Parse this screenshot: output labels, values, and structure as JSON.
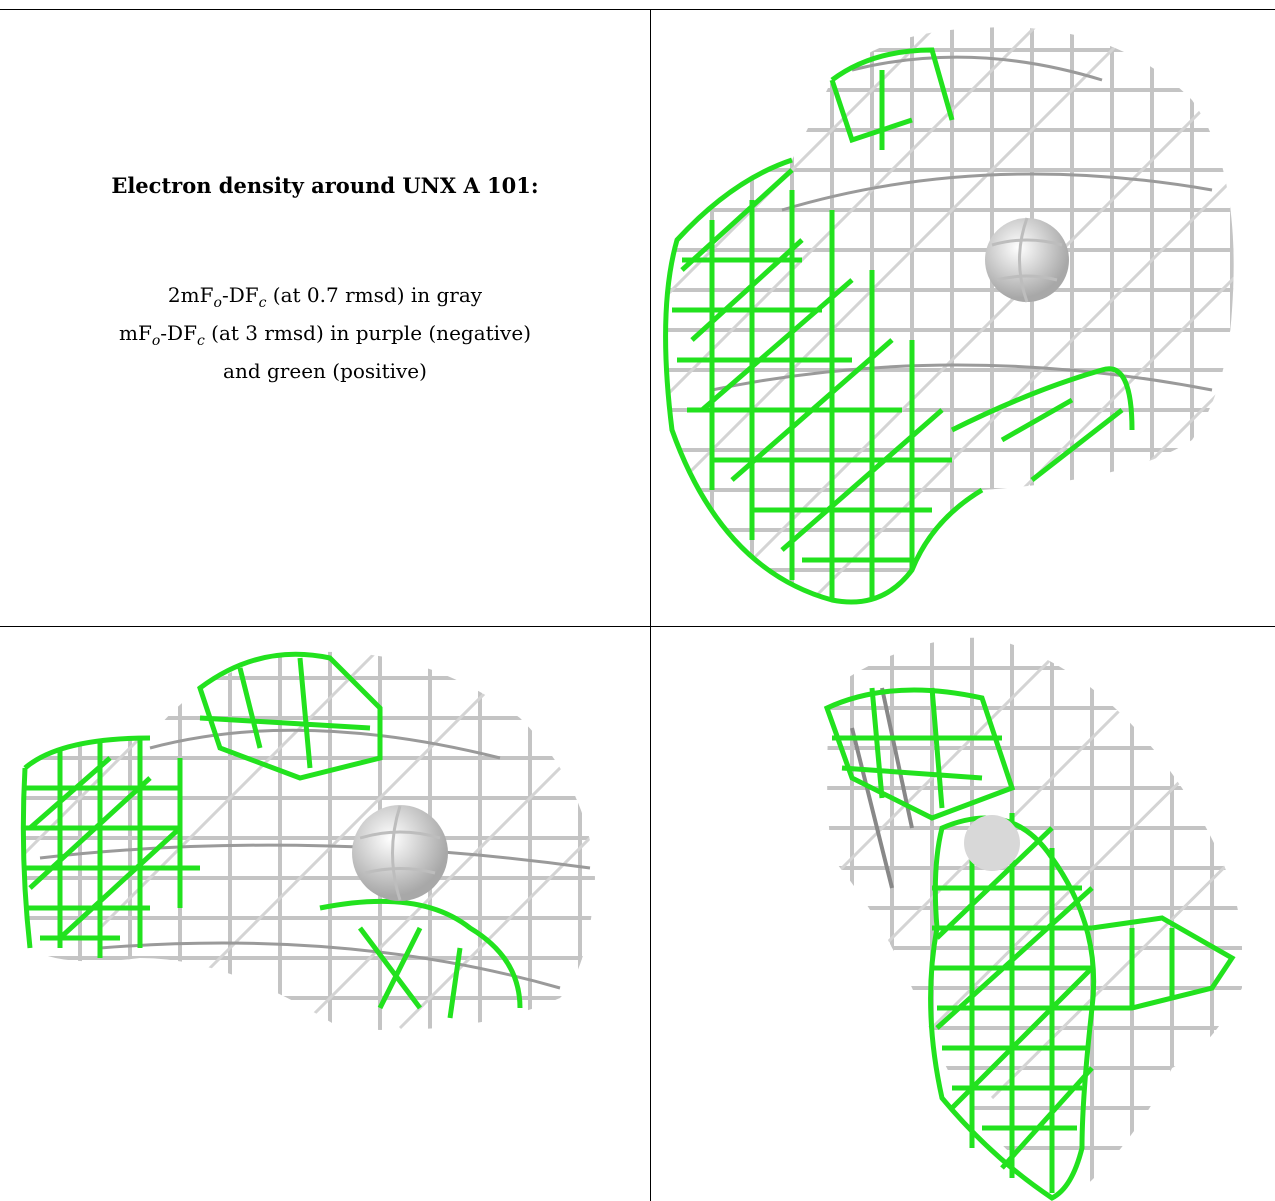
{
  "caption": {
    "title": "Electron density around UNX A 101:",
    "map_2fofc": {
      "prefix": "2mF",
      "o": "o",
      "mid": "-DF",
      "c": "c",
      "suffix": " (at 0.7 rmsd) in gray"
    },
    "map_fofc": {
      "prefix": "mF",
      "o": "o",
      "mid": "-DF",
      "c": "c",
      "suffix": " (at 3 rmsd) in purple (negative)"
    },
    "map_fofc_cont": "and green (positive)"
  },
  "colors": {
    "gray_mesh": "#c9c9c9",
    "gray_mesh_dark": "#8a8a8a",
    "green_mesh": "#22e21e",
    "atom": "#e6e6e6"
  }
}
